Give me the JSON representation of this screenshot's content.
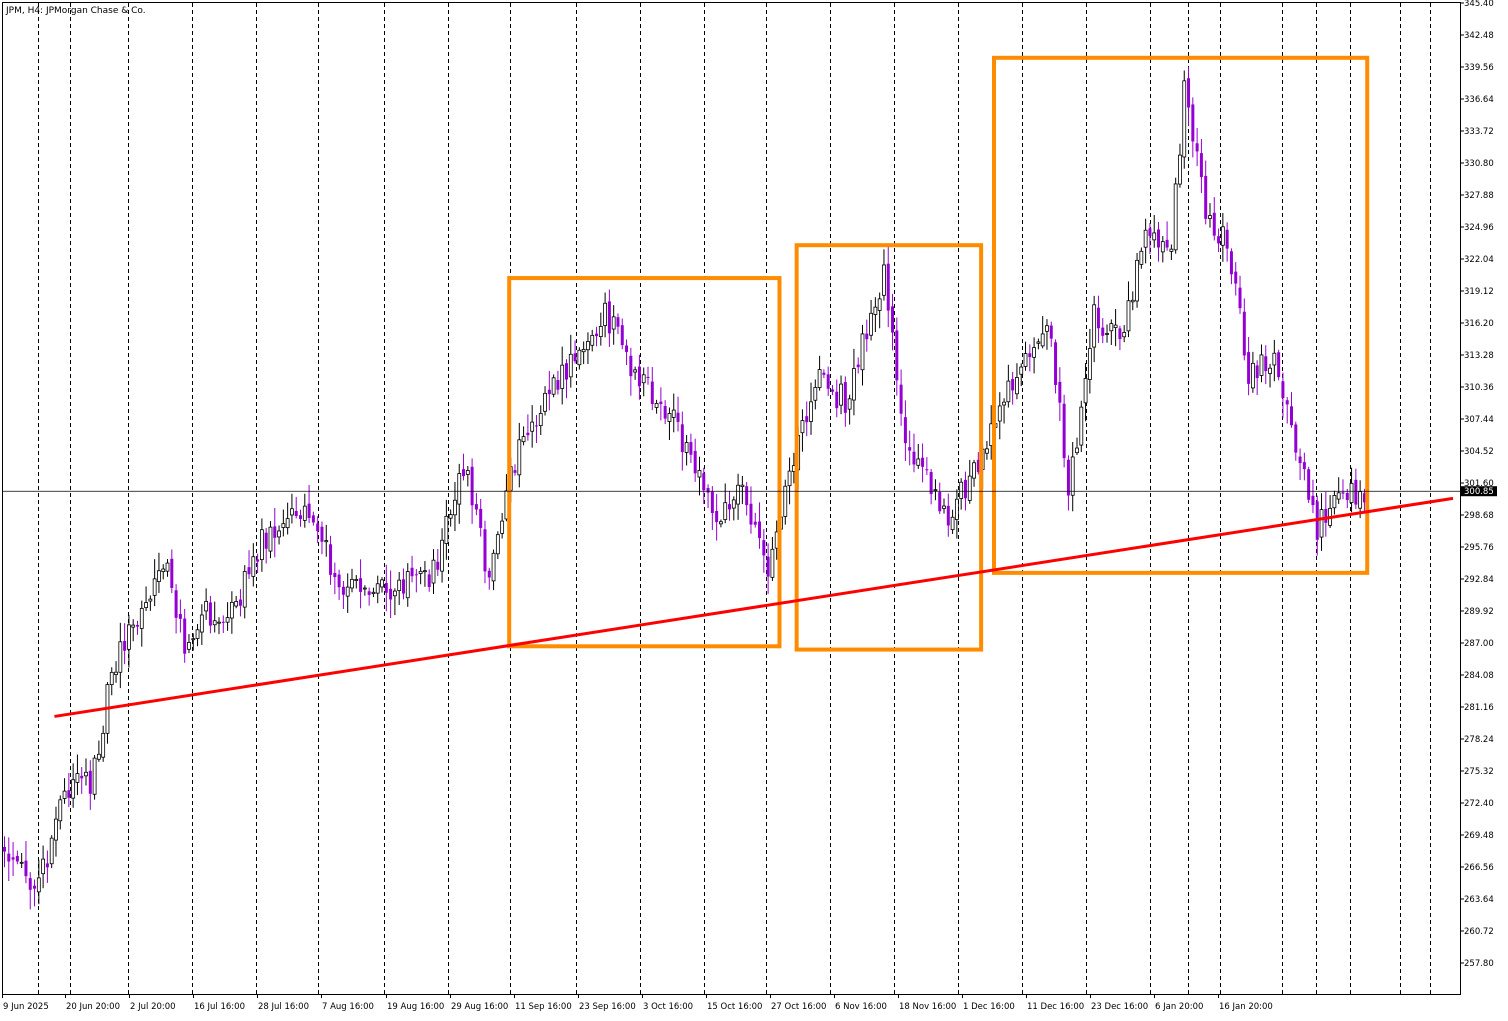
{
  "header": {
    "title": "JPM, H4:  JPMorgan Chase & Co."
  },
  "colors": {
    "background": "#ffffff",
    "frame": "#000000",
    "grid": "#000000",
    "bull_candle": "#000000",
    "bear_candle": "#9400d3",
    "trendline": "#ff0000",
    "boxes": "#ff8c00",
    "price_line": "#000000"
  },
  "chart_data": {
    "type": "candlestick",
    "symbol": "JPM",
    "timeframe": "H4",
    "ylim": [
      255.48,
      345.4
    ],
    "y_ticks": [
      "345.40",
      "342.48",
      "339.56",
      "336.64",
      "333.72",
      "330.80",
      "327.88",
      "324.96",
      "322.04",
      "319.12",
      "316.20",
      "313.28",
      "310.36",
      "307.44",
      "304.52",
      "301.60",
      "298.68",
      "295.76",
      "292.84",
      "289.92",
      "287.00",
      "284.08",
      "281.16",
      "278.24",
      "275.32",
      "272.40",
      "269.48",
      "266.56",
      "263.64",
      "260.72",
      "257.80"
    ],
    "x_labels": [
      "9 Jun 2025",
      "20 Jun 20:00",
      "2 Jul 20:00",
      "16 Jul 16:00",
      "28 Jul 16:00",
      "7 Aug 16:00",
      "19 Aug 16:00",
      "29 Aug 16:00",
      "11 Sep 16:00",
      "23 Sep 16:00",
      "3 Oct 16:00",
      "15 Oct 16:00",
      "27 Oct 16:00",
      "6 Nov 16:00",
      "18 Nov 16:00",
      "1 Dec 16:00",
      "11 Dec 16:00",
      "23 Dec 16:00",
      "6 Jan 20:00",
      "16 Jan 20:00"
    ],
    "current_price": "300.85",
    "grid": "vertical dashed separators",
    "candle_count": 318,
    "close_path": [
      {
        "i": 0,
        "close": 268.0
      },
      {
        "i": 8,
        "close": 264.5
      },
      {
        "i": 12,
        "close": 270.5
      },
      {
        "i": 17,
        "close": 276.0
      },
      {
        "i": 20,
        "close": 274.0
      },
      {
        "i": 24,
        "close": 282.0
      },
      {
        "i": 28,
        "close": 287.5
      },
      {
        "i": 32,
        "close": 290.0
      },
      {
        "i": 38,
        "close": 295.5
      },
      {
        "i": 42,
        "close": 285.5
      },
      {
        "i": 47,
        "close": 290.0
      },
      {
        "i": 52,
        "close": 288.5
      },
      {
        "i": 60,
        "close": 296.5
      },
      {
        "i": 68,
        "close": 299.5
      },
      {
        "i": 72,
        "close": 297.0
      },
      {
        "i": 80,
        "close": 292.0
      },
      {
        "i": 90,
        "close": 291.5
      },
      {
        "i": 100,
        "close": 293.5
      },
      {
        "i": 105,
        "close": 300.5
      },
      {
        "i": 108,
        "close": 302.5
      },
      {
        "i": 113,
        "close": 292.5
      },
      {
        "i": 118,
        "close": 303.0
      },
      {
        "i": 126,
        "close": 309.5
      },
      {
        "i": 134,
        "close": 314.0
      },
      {
        "i": 140,
        "close": 317.0
      },
      {
        "i": 148,
        "close": 311.0
      },
      {
        "i": 156,
        "close": 307.0
      },
      {
        "i": 162,
        "close": 303.0
      },
      {
        "i": 166,
        "close": 297.5
      },
      {
        "i": 172,
        "close": 301.5
      },
      {
        "i": 178,
        "close": 292.5
      },
      {
        "i": 184,
        "close": 304.0
      },
      {
        "i": 190,
        "close": 311.0
      },
      {
        "i": 196,
        "close": 309.0
      },
      {
        "i": 202,
        "close": 317.0
      },
      {
        "i": 205,
        "close": 320.5
      },
      {
        "i": 210,
        "close": 305.5
      },
      {
        "i": 216,
        "close": 301.0
      },
      {
        "i": 220,
        "close": 299.0
      },
      {
        "i": 226,
        "close": 302.5
      },
      {
        "i": 232,
        "close": 308.5
      },
      {
        "i": 238,
        "close": 312.5
      },
      {
        "i": 244,
        "close": 315.5
      },
      {
        "i": 248,
        "close": 300.5
      },
      {
        "i": 254,
        "close": 317.0
      },
      {
        "i": 260,
        "close": 314.5
      },
      {
        "i": 266,
        "close": 324.5
      },
      {
        "i": 272,
        "close": 323.5
      },
      {
        "i": 275,
        "close": 337.0
      },
      {
        "i": 280,
        "close": 326.5
      },
      {
        "i": 285,
        "close": 323.5
      },
      {
        "i": 290,
        "close": 311.5
      },
      {
        "i": 296,
        "close": 313.5
      },
      {
        "i": 302,
        "close": 303.5
      },
      {
        "i": 306,
        "close": 297.5
      },
      {
        "i": 310,
        "close": 299.5
      },
      {
        "i": 317,
        "close": 300.85
      }
    ],
    "trendline": {
      "start": {
        "i": 12,
        "price": 280.3
      },
      "end": {
        "i": 338,
        "price": 300.2
      }
    },
    "boxes": [
      {
        "i_start": 118,
        "i_end": 181,
        "price_top": 320.3,
        "price_bottom": 286.7
      },
      {
        "i_start": 185,
        "i_end": 228,
        "price_top": 323.3,
        "price_bottom": 286.4
      },
      {
        "i_start": 231,
        "i_end": 318,
        "price_top": 340.4,
        "price_bottom": 293.4
      }
    ]
  }
}
